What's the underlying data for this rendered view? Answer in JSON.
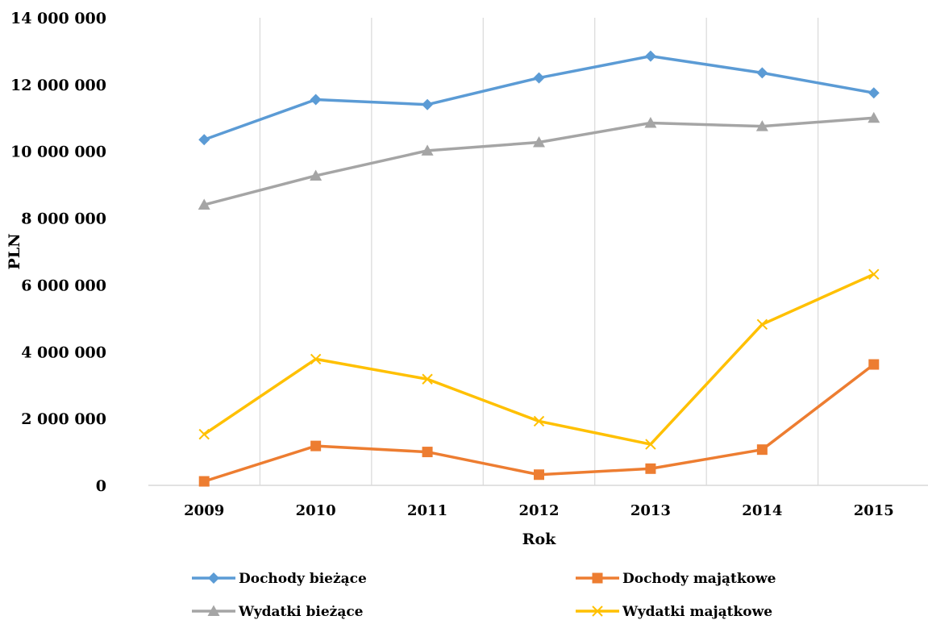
{
  "chart_data": {
    "type": "line",
    "xlabel": "Rok",
    "ylabel": "PLN",
    "categories": [
      "2009",
      "2010",
      "2011",
      "2012",
      "2013",
      "2014",
      "2015"
    ],
    "ylim": [
      0,
      14000000
    ],
    "yticks": [
      0,
      2000000,
      4000000,
      6000000,
      8000000,
      10000000,
      12000000,
      14000000
    ],
    "ytick_labels": [
      "0",
      "2 000 000",
      "4 000 000",
      "6 000 000",
      "8 000 000",
      "10 000 000",
      "12 000 000",
      "14 000 000"
    ],
    "grid": "vertical between categories",
    "legend_position": "bottom",
    "series": [
      {
        "name": "Dochody bieżące",
        "color": "#5b9bd5",
        "marker": "diamond",
        "values": [
          10350000,
          11550000,
          11400000,
          12200000,
          12850000,
          12350000,
          11750000
        ]
      },
      {
        "name": "Dochody majątkowe",
        "color": "#ed7d31",
        "marker": "square",
        "values": [
          120000,
          1180000,
          1000000,
          320000,
          500000,
          1070000,
          3620000
        ]
      },
      {
        "name": "Wydatki bieżące",
        "color": "#a5a5a5",
        "marker": "triangle",
        "values": [
          8400000,
          9270000,
          10020000,
          10270000,
          10850000,
          10750000,
          11000000
        ]
      },
      {
        "name": "Wydatki majątkowe",
        "color": "#ffc000",
        "marker": "x",
        "values": [
          1530000,
          3780000,
          3180000,
          1920000,
          1230000,
          4820000,
          6320000
        ]
      }
    ]
  }
}
